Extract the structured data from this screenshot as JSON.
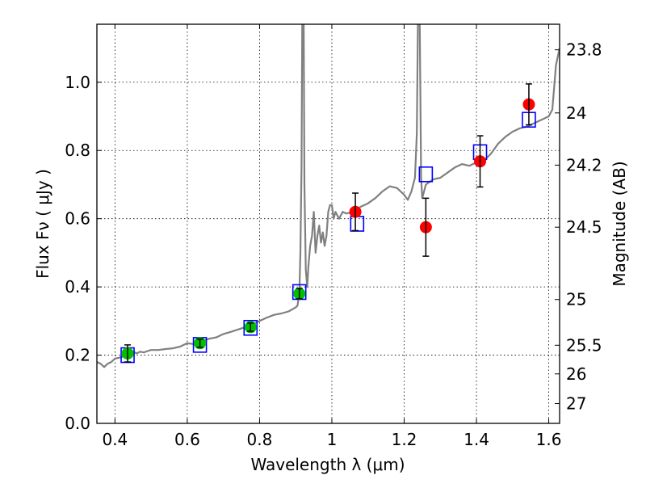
{
  "chart_data": {
    "type": "scatter",
    "xlabel": "Wavelength  λ (μm)",
    "ylabel": "Flux  Fν ( μJy )",
    "ylabel_right": "Magnitude (AB)",
    "xlim": [
      0.35,
      1.63
    ],
    "ylim": [
      0.0,
      1.17
    ],
    "x_ticks": [
      0.4,
      0.6,
      0.8,
      1.0,
      1.2,
      1.4,
      1.6
    ],
    "x_tick_labels": [
      "0.4",
      "0.6",
      "0.8",
      "1",
      "1.2",
      "1.4",
      "1.6"
    ],
    "y_ticks": [
      0.0,
      0.2,
      0.4,
      0.6,
      0.8,
      1.0
    ],
    "y_tick_labels": [
      "0.0",
      "0.2",
      "0.4",
      "0.6",
      "0.8",
      "1.0"
    ],
    "right_ticks": [
      {
        "label": "23.8",
        "flux": 1.095
      },
      {
        "label": "24",
        "flux": 0.91
      },
      {
        "label": "24.2",
        "flux": 0.757
      },
      {
        "label": "24.5",
        "flux": 0.575
      },
      {
        "label": "25",
        "flux": 0.363
      },
      {
        "label": "25.5",
        "flux": 0.229
      },
      {
        "label": "26",
        "flux": 0.145
      },
      {
        "label": "27",
        "flux": 0.058
      }
    ],
    "grid": true,
    "colors": {
      "model": "#808080",
      "model_photometry": "#0000ff",
      "optical_points": "#00c000",
      "nir_points": "#ff0000",
      "errorbar": "#000000"
    },
    "series": [
      {
        "type": "line",
        "points": [
          [
            0.35,
            0.18
          ],
          [
            0.36,
            0.175
          ],
          [
            0.37,
            0.165
          ],
          [
            0.38,
            0.175
          ],
          [
            0.39,
            0.18
          ],
          [
            0.4,
            0.19
          ],
          [
            0.41,
            0.192
          ],
          [
            0.42,
            0.195
          ],
          [
            0.43,
            0.198
          ],
          [
            0.44,
            0.202
          ],
          [
            0.45,
            0.21
          ],
          [
            0.46,
            0.205
          ],
          [
            0.47,
            0.21
          ],
          [
            0.48,
            0.208
          ],
          [
            0.49,
            0.212
          ],
          [
            0.5,
            0.215
          ],
          [
            0.52,
            0.215
          ],
          [
            0.54,
            0.218
          ],
          [
            0.56,
            0.22
          ],
          [
            0.58,
            0.225
          ],
          [
            0.6,
            0.235
          ],
          [
            0.62,
            0.232
          ],
          [
            0.64,
            0.24
          ],
          [
            0.66,
            0.248
          ],
          [
            0.68,
            0.252
          ],
          [
            0.7,
            0.262
          ],
          [
            0.72,
            0.268
          ],
          [
            0.74,
            0.275
          ],
          [
            0.76,
            0.282
          ],
          [
            0.78,
            0.29
          ],
          [
            0.8,
            0.3
          ],
          [
            0.82,
            0.31
          ],
          [
            0.84,
            0.318
          ],
          [
            0.86,
            0.322
          ],
          [
            0.88,
            0.328
          ],
          [
            0.9,
            0.34
          ],
          [
            0.905,
            0.345
          ],
          [
            0.91,
            0.38
          ],
          [
            0.913,
            0.5
          ],
          [
            0.916,
            0.75
          ],
          [
            0.918,
            1.17
          ],
          [
            0.922,
            1.17
          ],
          [
            0.924,
            0.7
          ],
          [
            0.928,
            0.45
          ],
          [
            0.932,
            0.4
          ],
          [
            0.935,
            0.46
          ],
          [
            0.94,
            0.52
          ],
          [
            0.945,
            0.55
          ],
          [
            0.95,
            0.62
          ],
          [
            0.955,
            0.5
          ],
          [
            0.96,
            0.55
          ],
          [
            0.965,
            0.58
          ],
          [
            0.97,
            0.53
          ],
          [
            0.975,
            0.56
          ],
          [
            0.98,
            0.52
          ],
          [
            0.985,
            0.55
          ],
          [
            0.99,
            0.62
          ],
          [
            0.995,
            0.64
          ],
          [
            1.0,
            0.64
          ],
          [
            1.005,
            0.6
          ],
          [
            1.01,
            0.62
          ],
          [
            1.02,
            0.6
          ],
          [
            1.03,
            0.62
          ],
          [
            1.04,
            0.615
          ],
          [
            1.06,
            0.62
          ],
          [
            1.08,
            0.635
          ],
          [
            1.1,
            0.645
          ],
          [
            1.12,
            0.66
          ],
          [
            1.14,
            0.68
          ],
          [
            1.16,
            0.695
          ],
          [
            1.18,
            0.69
          ],
          [
            1.2,
            0.67
          ],
          [
            1.21,
            0.655
          ],
          [
            1.22,
            0.68
          ],
          [
            1.23,
            0.72
          ],
          [
            1.235,
            0.85
          ],
          [
            1.238,
            1.17
          ],
          [
            1.243,
            1.17
          ],
          [
            1.247,
            0.72
          ],
          [
            1.25,
            0.66
          ],
          [
            1.26,
            0.7
          ],
          [
            1.28,
            0.715
          ],
          [
            1.3,
            0.72
          ],
          [
            1.32,
            0.735
          ],
          [
            1.34,
            0.75
          ],
          [
            1.36,
            0.76
          ],
          [
            1.38,
            0.755
          ],
          [
            1.4,
            0.765
          ],
          [
            1.42,
            0.77
          ],
          [
            1.44,
            0.79
          ],
          [
            1.46,
            0.82
          ],
          [
            1.48,
            0.84
          ],
          [
            1.5,
            0.855
          ],
          [
            1.52,
            0.865
          ],
          [
            1.54,
            0.87
          ],
          [
            1.56,
            0.88
          ],
          [
            1.58,
            0.89
          ],
          [
            1.6,
            0.9
          ],
          [
            1.61,
            0.92
          ],
          [
            1.62,
            1.05
          ],
          [
            1.63,
            1.1
          ]
        ]
      },
      {
        "type": "model_squares",
        "points": [
          [
            0.435,
            0.2
          ],
          [
            0.635,
            0.23
          ],
          [
            0.775,
            0.28
          ],
          [
            0.91,
            0.385
          ],
          [
            1.07,
            0.585
          ],
          [
            1.26,
            0.73
          ],
          [
            1.41,
            0.795
          ],
          [
            1.545,
            0.89
          ]
        ]
      },
      {
        "type": "optical_points",
        "points": [
          {
            "x": 0.435,
            "y": 0.205,
            "err": 0.025
          },
          {
            "x": 0.635,
            "y": 0.235,
            "err": 0.012
          },
          {
            "x": 0.775,
            "y": 0.282,
            "err": 0.012
          },
          {
            "x": 0.91,
            "y": 0.38,
            "err": 0.015
          }
        ]
      },
      {
        "type": "nir_points",
        "points": [
          {
            "x": 1.065,
            "y": 0.62,
            "err": 0.055
          },
          {
            "x": 1.26,
            "y": 0.575,
            "err": 0.085
          },
          {
            "x": 1.41,
            "y": 0.768,
            "err": 0.075
          },
          {
            "x": 1.545,
            "y": 0.935,
            "err": 0.06
          }
        ]
      }
    ]
  }
}
